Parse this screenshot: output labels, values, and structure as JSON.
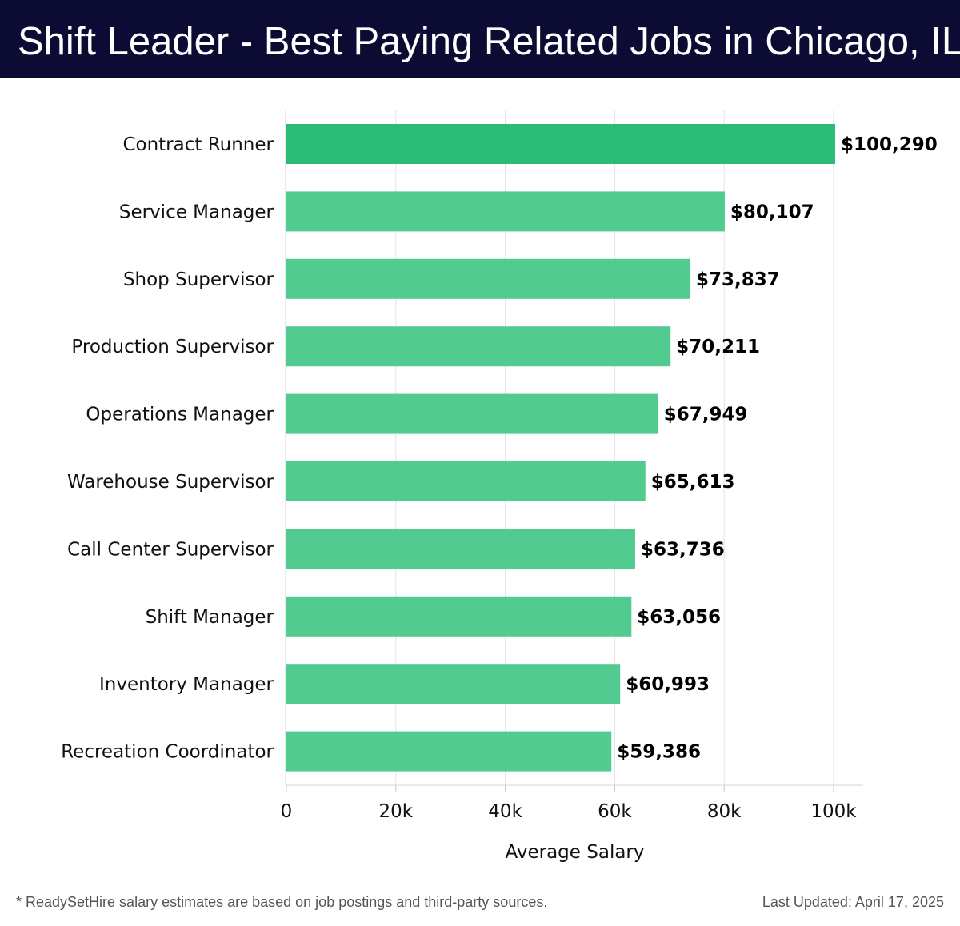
{
  "header": {
    "title": "Shift Leader - Best Paying Related Jobs in Chicago, IL"
  },
  "chart_data": {
    "type": "bar",
    "orientation": "horizontal",
    "categories": [
      "Contract Runner",
      "Service Manager",
      "Shop Supervisor",
      "Production Supervisor",
      "Operations Manager",
      "Warehouse Supervisor",
      "Call Center Supervisor",
      "Shift Manager",
      "Inventory Manager",
      "Recreation Coordinator"
    ],
    "values": [
      100290,
      80107,
      73837,
      70211,
      67949,
      65613,
      63736,
      63056,
      60993,
      59386
    ],
    "data_labels": [
      "$100,290",
      "$80,107",
      "$73,837",
      "$70,211",
      "$67,949",
      "$65,613",
      "$63,736",
      "$63,056",
      "$60,993",
      "$59,386"
    ],
    "xlabel": "Average Salary",
    "xlim": [
      0,
      100000
    ],
    "xticks": [
      0,
      20000,
      40000,
      60000,
      80000,
      100000
    ],
    "xtick_labels": [
      "0",
      "20k",
      "40k",
      "60k",
      "80k",
      "100k"
    ],
    "grid": true,
    "bar_color_top": "#2bbd77",
    "bar_color": "#52cb90"
  },
  "footer": {
    "note": "* ReadySetHire salary estimates are based on job postings and third-party sources.",
    "updated": "Last Updated: April 17, 2025"
  }
}
